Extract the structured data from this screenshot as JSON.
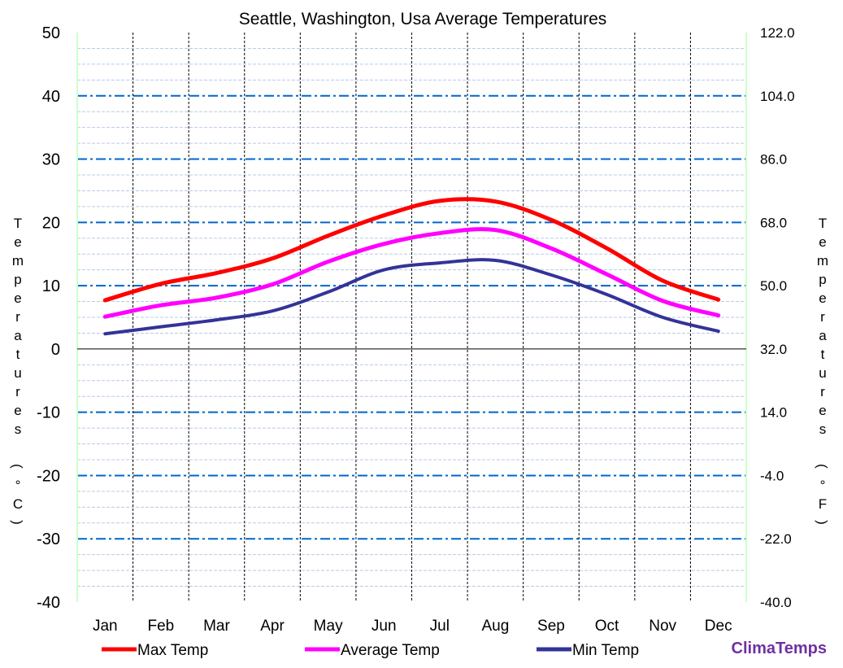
{
  "chart_data": {
    "type": "line",
    "title": "Seattle, Washington, Usa Average Temperatures",
    "ylabel": "Temperatures (°C)",
    "y2label": "Temperatures (°F)",
    "categories": [
      "Jan",
      "Feb",
      "Mar",
      "Apr",
      "May",
      "Jun",
      "Jul",
      "Aug",
      "Sep",
      "Oct",
      "Nov",
      "Dec"
    ],
    "ylim": [
      -40,
      50
    ],
    "yticks": [
      "50",
      "40",
      "30",
      "20",
      "10",
      "0",
      "-10",
      "-20",
      "-30",
      "-40"
    ],
    "y2ticks": [
      "122.0",
      "104.0",
      "86.0",
      "68.0",
      "50.0",
      "32.0",
      "14.0",
      "-4.0",
      "-22.0",
      "-40.0"
    ],
    "grid": true,
    "legend_position": "bottom",
    "series": [
      {
        "name": "Max Temp",
        "color": "#ff0000",
        "values": [
          7.7,
          10.3,
          12.0,
          14.3,
          17.9,
          21.1,
          23.4,
          23.3,
          20.4,
          15.9,
          10.8,
          7.8
        ]
      },
      {
        "name": "Average Temp",
        "color": "#ff00ff",
        "values": [
          5.1,
          6.9,
          8.1,
          10.2,
          13.8,
          16.6,
          18.3,
          18.8,
          15.9,
          11.8,
          7.6,
          5.3
        ]
      },
      {
        "name": "Min Temp",
        "color": "#333399",
        "values": [
          2.4,
          3.5,
          4.6,
          6.0,
          9.0,
          12.5,
          13.6,
          14.0,
          11.7,
          8.6,
          5.0,
          2.8
        ]
      }
    ]
  },
  "brand": "ClimaTemps"
}
